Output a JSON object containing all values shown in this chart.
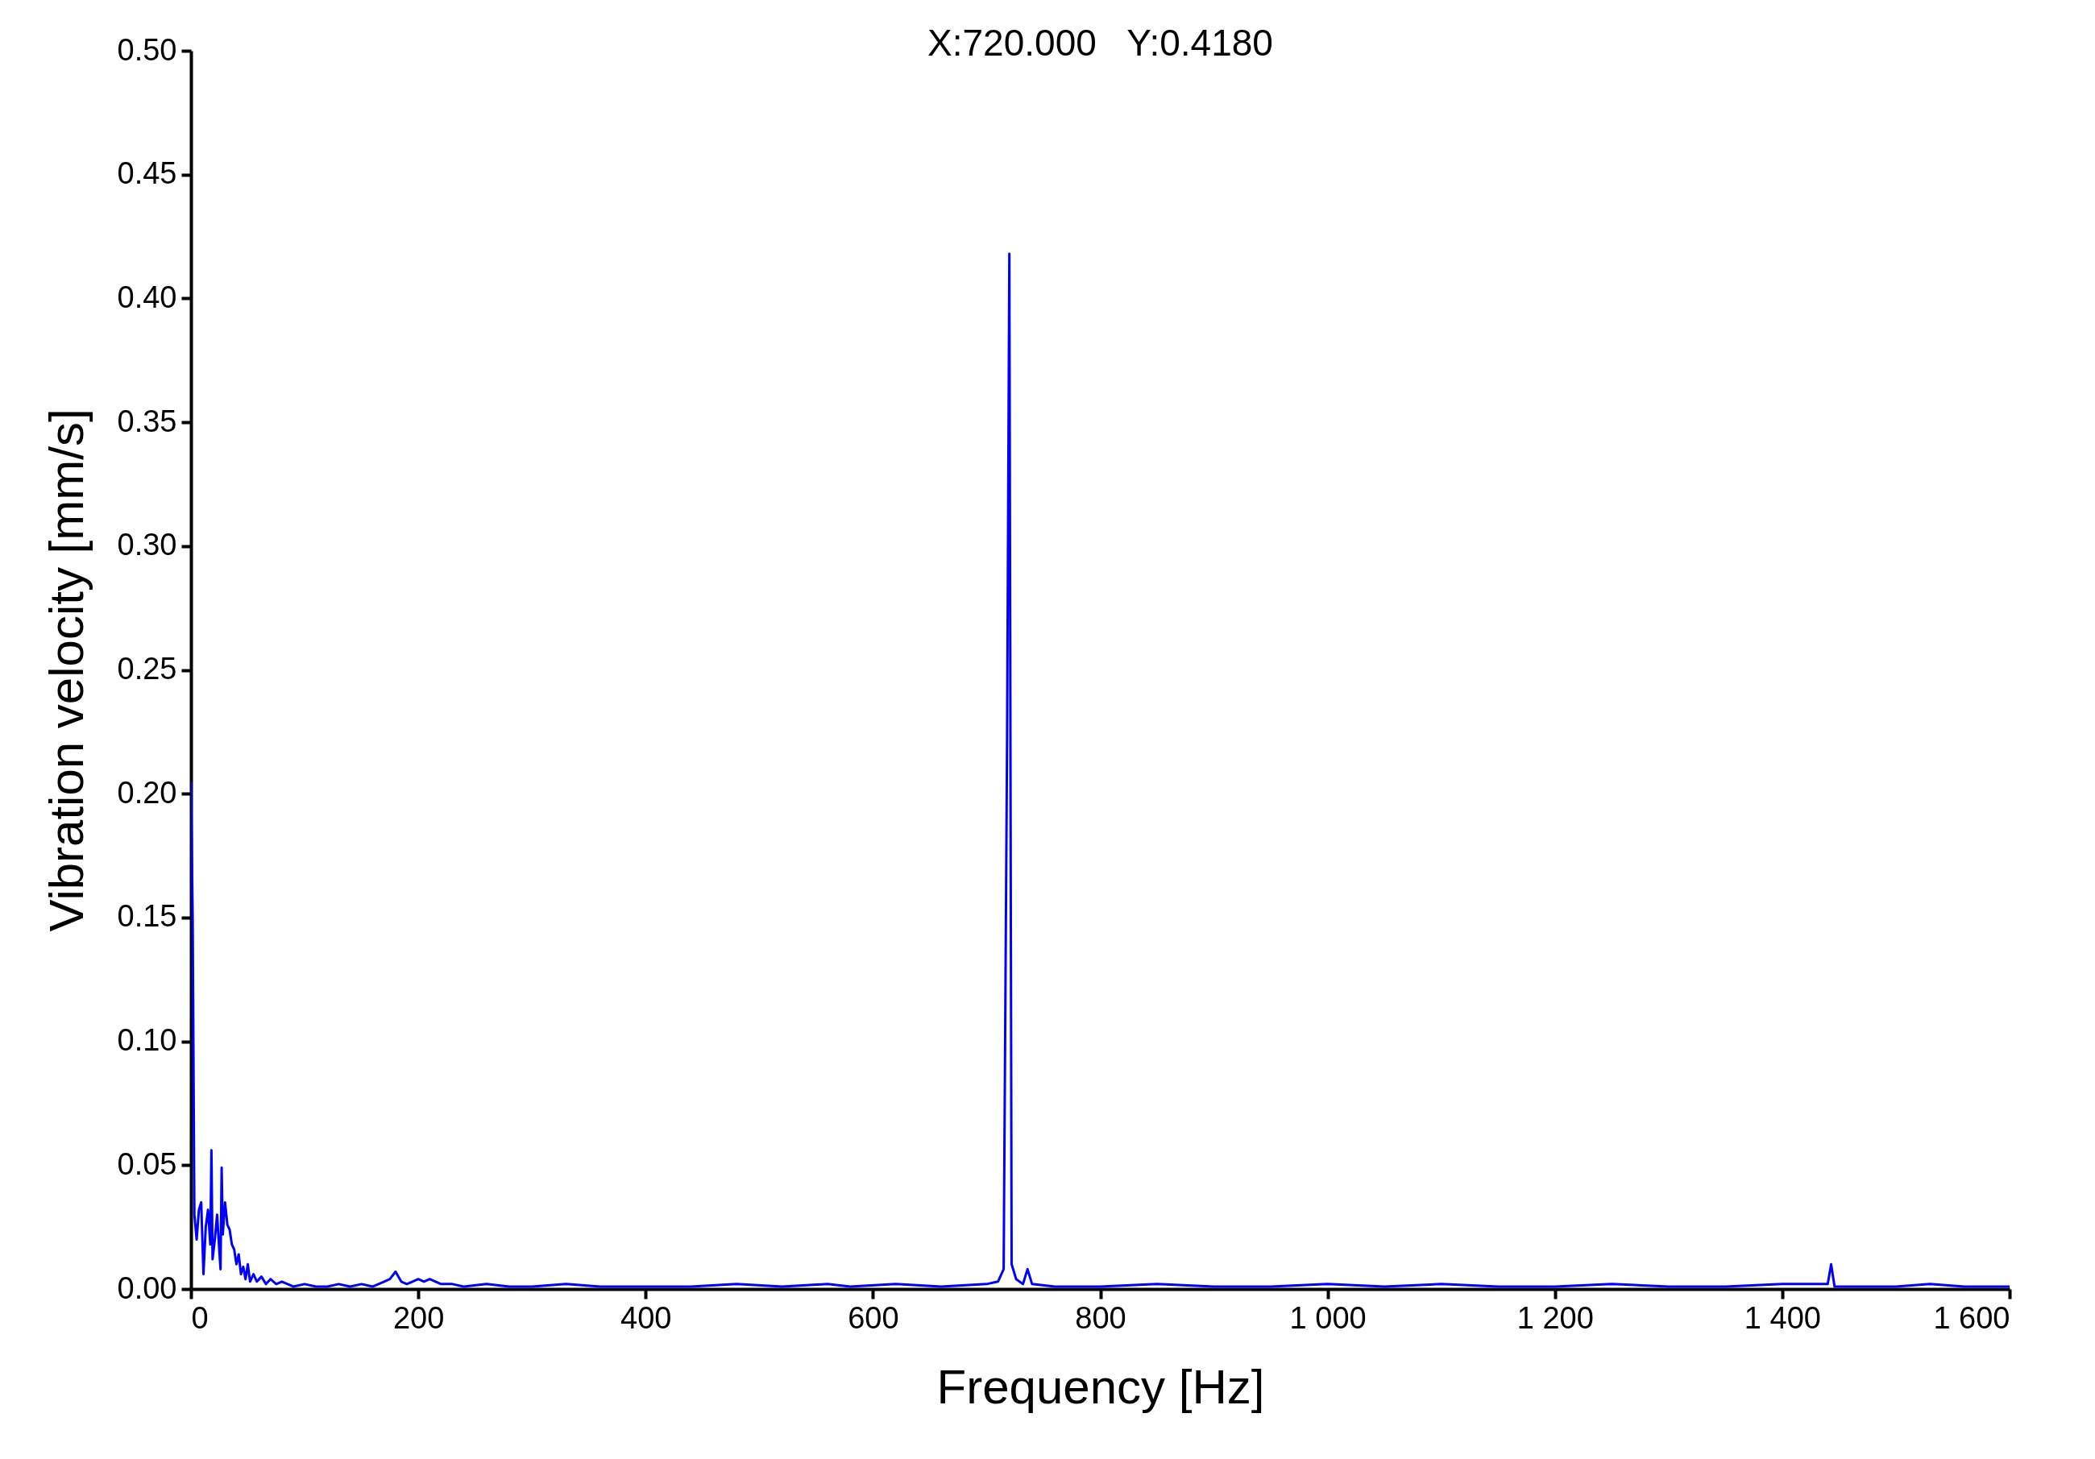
{
  "chart_data": {
    "type": "line",
    "title": "X:720.000   Y:0.4180",
    "xlabel": "Frequency [Hz]",
    "ylabel": "Vibration velocity [mm/s]",
    "x": [
      0,
      1.5,
      3,
      5,
      7,
      9,
      11,
      13,
      15,
      17,
      18,
      19,
      21,
      23,
      25,
      26,
      27,
      28,
      30,
      32,
      34,
      36,
      38,
      40,
      42,
      44,
      46,
      48,
      50,
      52,
      55,
      58,
      62,
      66,
      70,
      75,
      80,
      90,
      100,
      110,
      120,
      130,
      140,
      150,
      160,
      170,
      175,
      180,
      185,
      190,
      200,
      205,
      210,
      220,
      230,
      240,
      260,
      280,
      300,
      330,
      360,
      400,
      440,
      480,
      520,
      560,
      580,
      620,
      660,
      700,
      710,
      715,
      718,
      720,
      722,
      726,
      732,
      736,
      740,
      760,
      800,
      850,
      900,
      950,
      1000,
      1050,
      1100,
      1150,
      1200,
      1250,
      1300,
      1350,
      1400,
      1440,
      1443,
      1446,
      1500,
      1530,
      1560,
      1600
    ],
    "series": [
      {
        "color": "#0000ff",
        "values": [
          0.205,
          0.15,
          0.03,
          0.02,
          0.032,
          0.035,
          0.006,
          0.025,
          0.032,
          0.018,
          0.056,
          0.012,
          0.02,
          0.03,
          0.015,
          0.008,
          0.049,
          0.022,
          0.035,
          0.026,
          0.024,
          0.018,
          0.016,
          0.01,
          0.014,
          0.006,
          0.009,
          0.004,
          0.01,
          0.003,
          0.006,
          0.003,
          0.005,
          0.002,
          0.004,
          0.002,
          0.003,
          0.001,
          0.002,
          0.001,
          0.001,
          0.002,
          0.001,
          0.002,
          0.001,
          0.003,
          0.004,
          0.007,
          0.003,
          0.002,
          0.004,
          0.003,
          0.004,
          0.002,
          0.002,
          0.001,
          0.002,
          0.001,
          0.001,
          0.002,
          0.001,
          0.001,
          0.001,
          0.002,
          0.001,
          0.002,
          0.001,
          0.002,
          0.001,
          0.002,
          0.003,
          0.008,
          0.222,
          0.418,
          0.01,
          0.004,
          0.002,
          0.008,
          0.002,
          0.001,
          0.001,
          0.002,
          0.001,
          0.001,
          0.002,
          0.001,
          0.002,
          0.001,
          0.001,
          0.002,
          0.001,
          0.001,
          0.002,
          0.002,
          0.01,
          0.001,
          0.001,
          0.002,
          0.001,
          0.001
        ]
      }
    ],
    "xlim": [
      0,
      1600
    ],
    "ylim": [
      0,
      0.5
    ],
    "xticks": [
      0,
      200,
      400,
      600,
      800,
      {
        "value": 1000,
        "label": "1 000"
      },
      {
        "value": 1200,
        "label": "1 200"
      },
      {
        "value": 1400,
        "label": "1 400"
      },
      {
        "value": 1600,
        "label": "1 600"
      }
    ],
    "yticks": [
      {
        "value": 0,
        "label": "0.00"
      },
      0.05,
      {
        "value": 0.1,
        "label": "0.10"
      },
      0.15,
      {
        "value": 0.2,
        "label": "0.20"
      },
      0.25,
      {
        "value": 0.3,
        "label": "0.30"
      },
      0.35,
      {
        "value": 0.4,
        "label": "0.40"
      },
      0.45,
      {
        "value": 0.5,
        "label": "0.50"
      }
    ]
  }
}
